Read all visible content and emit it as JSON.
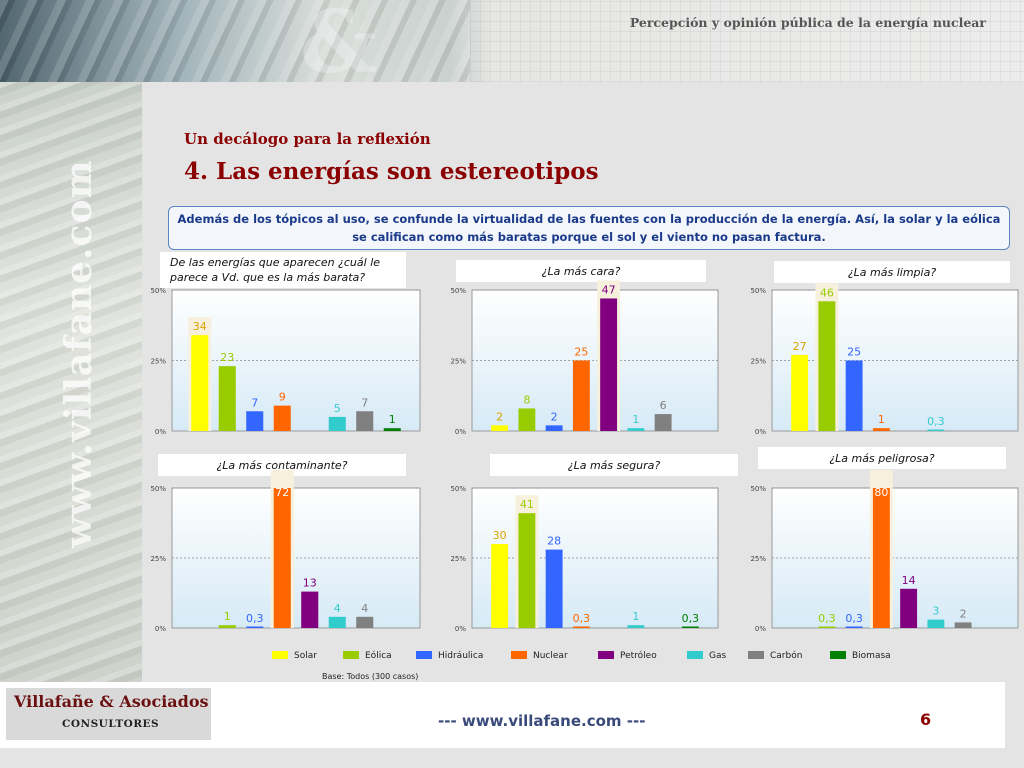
{
  "header": {
    "title": "Percepción y opinión pública de la energía nuclear"
  },
  "watermark": "www.villafane.com",
  "slide": {
    "subtitle": "Un decálogo para la reflexión",
    "title": "4. Las energías son estereotipos",
    "callout": "Además de los tópicos al uso, se confunde la virtualidad de las fuentes con la producción de la energía. Así, la solar y la eólica se califican como más baratas porque el sol y el viento no pasan factura."
  },
  "colors": {
    "Solar": "#ffff00",
    "Eólica": "#99cc00",
    "Hidráulica": "#3366ff",
    "Nuclear": "#ff6600",
    "Petróleo": "#800080",
    "Gas": "#33cccc",
    "Carbón": "#808080",
    "Biomasa": "#008000"
  },
  "chart_data": [
    {
      "type": "bar",
      "title": "De las energías que aparecen ¿cuál le parece a Vd. que es la más barata?",
      "categories": [
        "Solar",
        "Eólica",
        "Hidráulica",
        "Nuclear",
        "Petróleo",
        "Gas",
        "Carbón",
        "Biomasa"
      ],
      "values": [
        34,
        23,
        7,
        9,
        null,
        5,
        7,
        1
      ],
      "value_labels": [
        "34",
        "23",
        "7",
        "9",
        "",
        "5",
        "7",
        "1"
      ],
      "yticks": [
        "50%",
        "25%",
        "0%"
      ],
      "ylim": [
        0,
        50
      ]
    },
    {
      "type": "bar",
      "title": "¿La más cara?",
      "categories": [
        "Solar",
        "Eólica",
        "Hidráulica",
        "Nuclear",
        "Petróleo",
        "Gas",
        "Carbón",
        "Biomasa"
      ],
      "values": [
        2,
        8,
        2,
        25,
        47,
        1,
        6,
        null
      ],
      "value_labels": [
        "2",
        "8",
        "2",
        "25",
        "47",
        "1",
        "6",
        ""
      ],
      "yticks": [
        "50%",
        "25%",
        "0%"
      ],
      "ylim": [
        0,
        50
      ]
    },
    {
      "type": "bar",
      "title": "¿La más limpia?",
      "categories": [
        "Solar",
        "Eólica",
        "Hidráulica",
        "Nuclear",
        "Petróleo",
        "Gas",
        "Carbón",
        "Biomasa"
      ],
      "values": [
        27,
        46,
        25,
        1,
        null,
        0.3,
        null,
        null
      ],
      "value_labels": [
        "27",
        "46",
        "25",
        "1",
        "",
        "0,3",
        "",
        ""
      ],
      "yticks": [
        "50%",
        "25%",
        "0%"
      ],
      "ylim": [
        0,
        50
      ]
    },
    {
      "type": "bar",
      "title": "¿La más contaminante?",
      "categories": [
        "Solar",
        "Eólica",
        "Hidráulica",
        "Nuclear",
        "Petróleo",
        "Gas",
        "Carbón",
        "Biomasa"
      ],
      "values": [
        null,
        1,
        0.3,
        72,
        13,
        4,
        4,
        null
      ],
      "value_labels": [
        "",
        "1",
        "0,3",
        "72",
        "13",
        "4",
        "4",
        ""
      ],
      "yticks": [
        "50%",
        "25%",
        "0%"
      ],
      "ylim": [
        0,
        50
      ]
    },
    {
      "type": "bar",
      "title": "¿La más segura?",
      "categories": [
        "Solar",
        "Eólica",
        "Hidráulica",
        "Nuclear",
        "Petróleo",
        "Gas",
        "Carbón",
        "Biomasa"
      ],
      "values": [
        30,
        41,
        28,
        0.3,
        null,
        1,
        null,
        0.3
      ],
      "value_labels": [
        "30",
        "41",
        "28",
        "0,3",
        "",
        "1",
        "",
        "0,3"
      ],
      "yticks": [
        "50%",
        "25%",
        "0%"
      ],
      "ylim": [
        0,
        50
      ]
    },
    {
      "type": "bar",
      "title": "¿La más peligrosa?",
      "categories": [
        "Solar",
        "Eólica",
        "Hidráulica",
        "Nuclear",
        "Petróleo",
        "Gas",
        "Carbón",
        "Biomasa"
      ],
      "values": [
        null,
        0.3,
        0.3,
        80,
        14,
        3,
        2,
        null
      ],
      "value_labels": [
        "",
        "0,3",
        "0,3",
        "80",
        "14",
        "3",
        "2",
        ""
      ],
      "yticks": [
        "50%",
        "25%",
        "0%"
      ],
      "ylim": [
        0,
        50
      ]
    }
  ],
  "legend": [
    "Solar",
    "Eólica",
    "Hidráulica",
    "Nuclear",
    "Petróleo",
    "Gas",
    "Carbón",
    "Biomasa"
  ],
  "base_note": "Base: Todos (300 casos)",
  "footer": {
    "brand_name": "Villafañe & Asociados",
    "brand_sub": "CONSULTORES",
    "url": "---  www.villafane.com  ---",
    "page_number": "6"
  }
}
